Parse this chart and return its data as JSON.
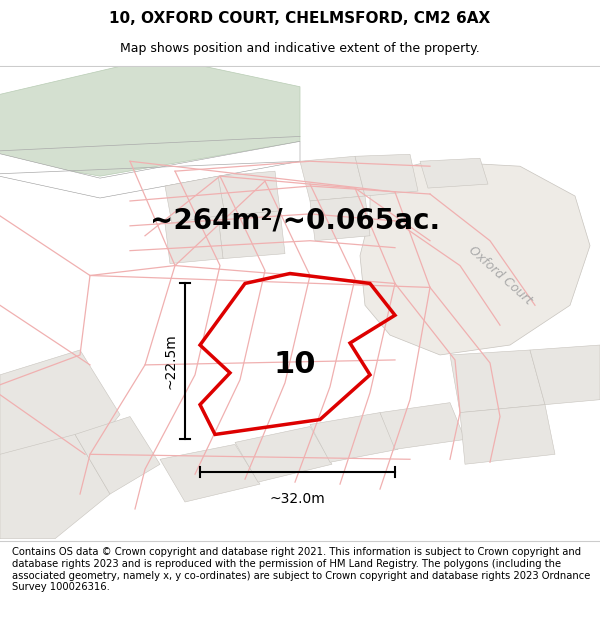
{
  "title": "10, OXFORD COURT, CHELMSFORD, CM2 6AX",
  "subtitle": "Map shows position and indicative extent of the property.",
  "area_label": "~264m²/~0.065ac.",
  "plot_number": "10",
  "width_label": "~32.0m",
  "height_label": "~22.5m",
  "footer": "Contains OS data © Crown copyright and database right 2021. This information is subject to Crown copyright and database rights 2023 and is reproduced with the permission of HM Land Registry. The polygons (including the associated geometry, namely x, y co-ordinates) are subject to Crown copyright and database rights 2023 Ordnance Survey 100026316.",
  "map_bg": "#f7f5f2",
  "plot_color_red": "#dd0000",
  "road_line_color": "#f0b0b0",
  "building_fill": "#e8e6e2",
  "building_edge": "#c8c4be",
  "green_fill": "#d4e0d0",
  "green_edge": "#b8ccb4",
  "road_fill": "#ffffff",
  "oxford_court_color": "#aaaaaa",
  "title_fontsize": 11,
  "subtitle_fontsize": 9,
  "area_fontsize": 20,
  "plot_num_fontsize": 22,
  "dim_fontsize": 10,
  "footer_fontsize": 7.2
}
